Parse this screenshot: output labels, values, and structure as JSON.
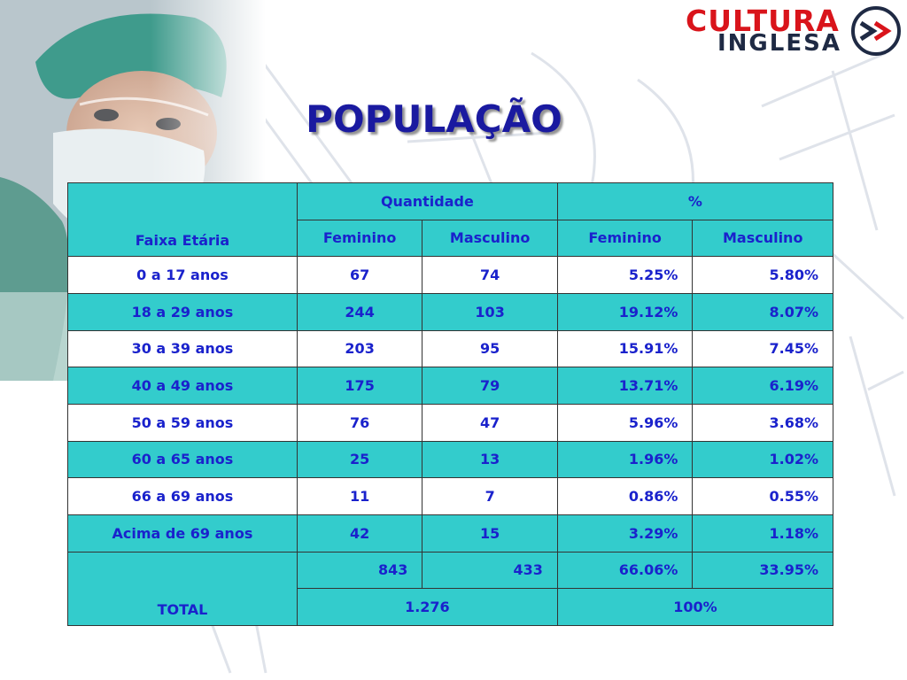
{
  "slide": {
    "title": "POPULAÇÃO"
  },
  "logo": {
    "line1": "CULTURA",
    "line2": "INGLESA",
    "mark_text": ">>",
    "colors": {
      "red": "#d9141b",
      "navy": "#1f2a44"
    }
  },
  "table": {
    "header": {
      "group_quantity": "Quantidade",
      "group_percent": "%",
      "age_label": "Faixa Etária",
      "fem": "Feminino",
      "masc": "Masculino",
      "fem_pct": "Feminino",
      "masc_pct": "Masculino"
    },
    "rows": [
      {
        "age": "0 a 17 anos",
        "fem": "67",
        "masc": "74",
        "fem_pct": "5.25%",
        "masc_pct": "5.80%"
      },
      {
        "age": "18 a 29 anos",
        "fem": "244",
        "masc": "103",
        "fem_pct": "19.12%",
        "masc_pct": "8.07%"
      },
      {
        "age": "30 a 39 anos",
        "fem": "203",
        "masc": "95",
        "fem_pct": "15.91%",
        "masc_pct": "7.45%"
      },
      {
        "age": "40 a 49 anos",
        "fem": "175",
        "masc": "79",
        "fem_pct": "13.71%",
        "masc_pct": "6.19%"
      },
      {
        "age": "50 a 59 anos",
        "fem": "76",
        "masc": "47",
        "fem_pct": "5.96%",
        "masc_pct": "3.68%"
      },
      {
        "age": "60 a 65 anos",
        "fem": "25",
        "masc": "13",
        "fem_pct": "1.96%",
        "masc_pct": "1.02%"
      },
      {
        "age": "66 a 69 anos",
        "fem": "11",
        "masc": "7",
        "fem_pct": "0.86%",
        "masc_pct": "0.55%"
      },
      {
        "age": "Acima de 69 anos",
        "fem": "42",
        "masc": "15",
        "fem_pct": "3.29%",
        "masc_pct": "1.18%"
      }
    ],
    "total": {
      "label": "TOTAL",
      "fem": "843",
      "masc": "433",
      "fem_pct": "66.06%",
      "masc_pct": "33.95%",
      "quantity_sum": "1.276",
      "percent_sum": "100%"
    },
    "colors": {
      "teal": "#33cccc",
      "text": "#1a22cc"
    }
  }
}
